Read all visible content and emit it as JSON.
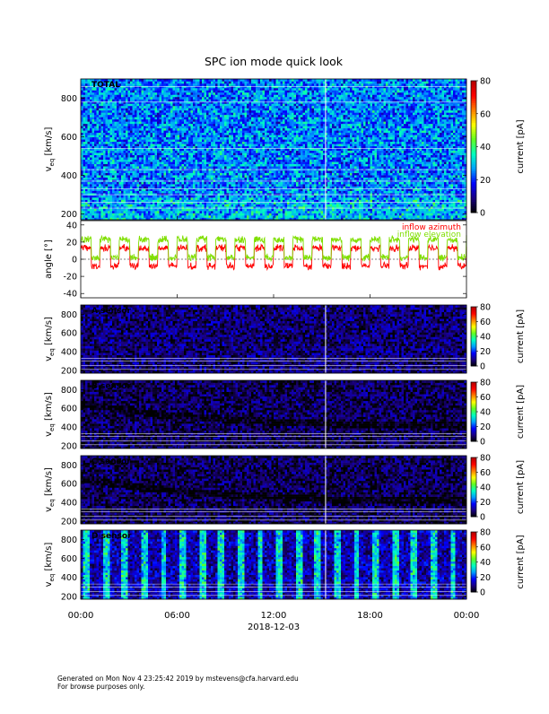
{
  "title": "SPC ion mode quick look",
  "date_label": "2018-12-03",
  "time_ticks": [
    "00:00",
    "06:00",
    "12:00",
    "18:00",
    "00:00"
  ],
  "footer": {
    "line1": "Generated on Mon Nov  4 23:25:42 2019 by mstevens@cfa.harvard.edu",
    "line2": "For browse purposes only."
  },
  "colors": {
    "colormap": [
      "#000000",
      "#1a0080",
      "#0000ff",
      "#00a0ff",
      "#00ffc0",
      "#60ff20",
      "#ffff00",
      "#ff8000",
      "#ff0000",
      "#b40000"
    ],
    "azimuth": "#ff0000",
    "elevation": "#7fdf00"
  },
  "chart_data": [
    {
      "type": "heatmap",
      "panel_label": "TOTAL",
      "ylabel": "v_eq [km/s]",
      "ylabel_main": "v",
      "ylabel_sub": "eq",
      "ylabel_unit": "[km/s]",
      "yticks": [
        200,
        400,
        600,
        800
      ],
      "ylim": [
        170,
        900
      ],
      "colorbar_label": "current [pA]",
      "colorbar_ticks": [
        0,
        20,
        40,
        60,
        80
      ],
      "colorbar_range": [
        0,
        80
      ],
      "typical_level_pA": 25
    },
    {
      "type": "line",
      "ylabel": "angle [°]",
      "yticks": [
        -40,
        -20,
        0,
        20,
        40
      ],
      "ylim": [
        -45,
        45
      ],
      "series": [
        {
          "name": "inflow azimuth",
          "color": "#ff0000",
          "typical_range_deg": [
            -10,
            15
          ]
        },
        {
          "name": "inflow elevation",
          "color": "#7fdf00",
          "typical_range_deg": [
            0,
            25
          ]
        }
      ],
      "oscillation_period_hours": 1.2
    },
    {
      "type": "heatmap",
      "panel_label": "A sensor",
      "ylabel_main": "v",
      "ylabel_sub": "eq",
      "ylabel_unit": "[km/s]",
      "yticks": [
        200,
        400,
        600,
        800
      ],
      "ylim": [
        170,
        900
      ],
      "colorbar_label": "current [pA]",
      "colorbar_ticks": [
        0,
        20,
        40,
        60,
        80
      ],
      "colorbar_range": [
        0,
        80
      ],
      "typical_level_pA": 8
    },
    {
      "type": "heatmap",
      "panel_label": "B sensor",
      "ylabel_main": "v",
      "ylabel_sub": "eq",
      "ylabel_unit": "[km/s]",
      "yticks": [
        200,
        400,
        600,
        800
      ],
      "ylim": [
        170,
        900
      ],
      "colorbar_label": "current [pA]",
      "colorbar_ticks": [
        0,
        20,
        40,
        60,
        80
      ],
      "colorbar_range": [
        0,
        80
      ],
      "typical_level_pA": 6
    },
    {
      "type": "heatmap",
      "panel_label": "C sensor",
      "ylabel_main": "v",
      "ylabel_sub": "eq",
      "ylabel_unit": "[km/s]",
      "yticks": [
        200,
        400,
        600,
        800
      ],
      "ylim": [
        170,
        900
      ],
      "colorbar_label": "current [pA]",
      "colorbar_ticks": [
        0,
        20,
        40,
        60,
        80
      ],
      "colorbar_range": [
        0,
        80
      ],
      "typical_level_pA": 6
    },
    {
      "type": "heatmap",
      "panel_label": "D sensor",
      "ylabel_main": "v",
      "ylabel_sub": "eq",
      "ylabel_unit": "[km/s]",
      "yticks": [
        200,
        400,
        600,
        800
      ],
      "ylim": [
        170,
        900
      ],
      "colorbar_label": "current [pA]",
      "colorbar_ticks": [
        0,
        20,
        40,
        60,
        80
      ],
      "colorbar_range": [
        0,
        80
      ],
      "typical_level_pA": 12
    }
  ]
}
